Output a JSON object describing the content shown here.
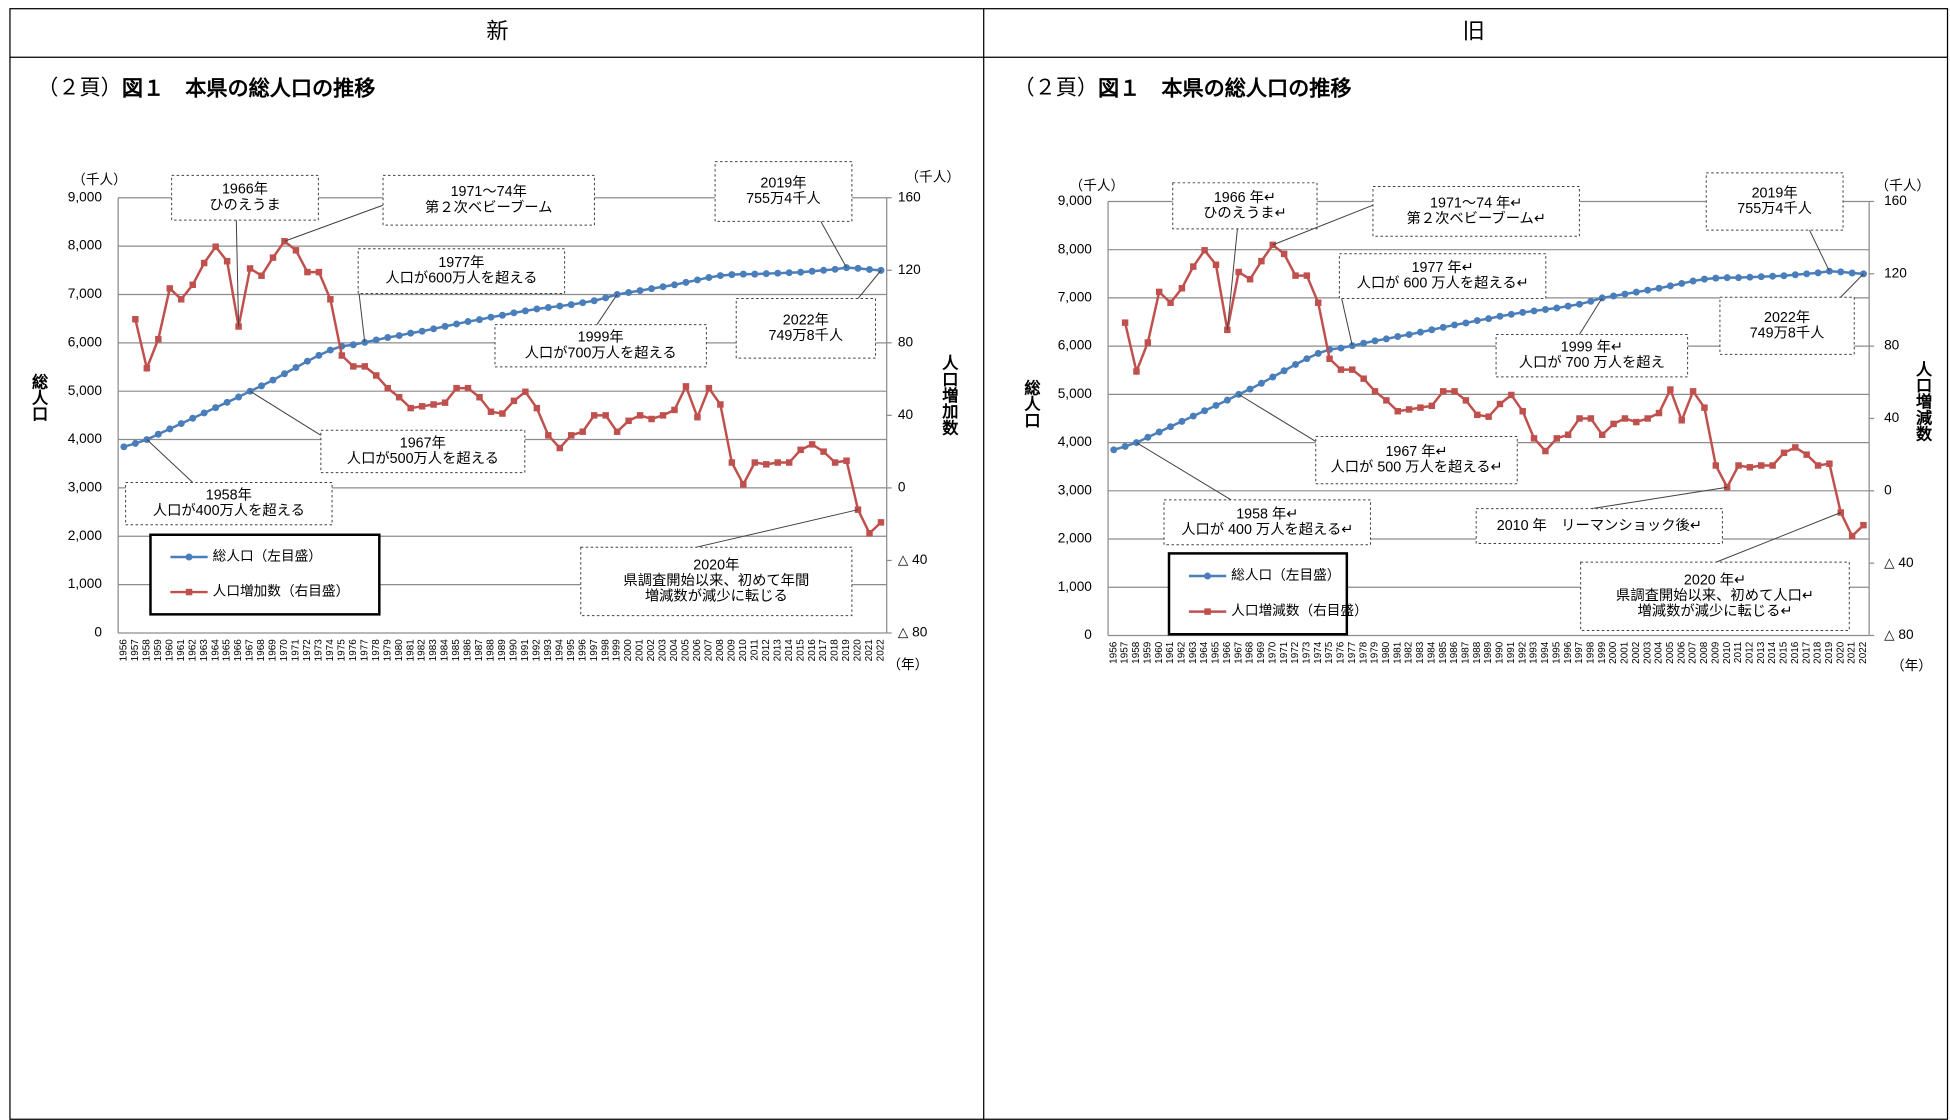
{
  "table": {
    "headers": [
      "新",
      "旧"
    ]
  },
  "captions": [
    {
      "page": "（２頁）",
      "title": "図１　本県の総人口の推移"
    },
    {
      "page": "（２頁）",
      "title": "図１　本県の総人口の推移"
    }
  ],
  "chart_data": [
    {
      "type": "line",
      "y_unit": "（千人）",
      "y2_unit": "（千人）",
      "y_label": "総人口",
      "y2_label": "人口増加数",
      "x_unit": "（年）",
      "categories": [
        "1956",
        "1957",
        "1958",
        "1959",
        "1960",
        "1961",
        "1962",
        "1963",
        "1964",
        "1965",
        "1966",
        "1967",
        "1968",
        "1969",
        "1970",
        "1971",
        "1972",
        "1973",
        "1974",
        "1975",
        "1976",
        "1977",
        "1978",
        "1979",
        "1980",
        "1981",
        "1982",
        "1983",
        "1984",
        "1985",
        "1986",
        "1987",
        "1988",
        "1989",
        "1990",
        "1991",
        "1992",
        "1993",
        "1994",
        "1995",
        "1996",
        "1997",
        "1998",
        "1999",
        "2000",
        "2001",
        "2002",
        "2003",
        "2004",
        "2005",
        "2006",
        "2007",
        "2008",
        "2009",
        "2010",
        "2011",
        "2012",
        "2013",
        "2014",
        "2015",
        "2016",
        "2017",
        "2018",
        "2019",
        "2020",
        "2021",
        "2022"
      ],
      "series": [
        {
          "name": "総人口（左目盛）",
          "color": "#4a7ebb",
          "values": [
            3850,
            3920,
            4000,
            4110,
            4220,
            4330,
            4440,
            4550,
            4660,
            4770,
            4880,
            5000,
            5110,
            5230,
            5360,
            5490,
            5620,
            5740,
            5850,
            5930,
            5960,
            6010,
            6060,
            6110,
            6150,
            6200,
            6240,
            6290,
            6340,
            6390,
            6440,
            6480,
            6530,
            6570,
            6620,
            6660,
            6700,
            6730,
            6760,
            6790,
            6830,
            6870,
            6930,
            7000,
            7040,
            7080,
            7120,
            7160,
            7200,
            7250,
            7300,
            7350,
            7390,
            7410,
            7420,
            7420,
            7430,
            7440,
            7450,
            7460,
            7480,
            7500,
            7520,
            7554,
            7540,
            7517,
            7498
          ]
        },
        {
          "name": "人口増加数（右目盛）",
          "color": "#c0504d",
          "axis": "y2",
          "values": [
            null,
            93,
            66,
            82,
            110,
            104,
            112,
            124,
            133,
            125,
            89,
            121,
            117,
            127,
            136,
            131,
            119,
            119,
            104,
            73,
            67,
            67,
            62,
            55,
            50,
            44,
            45,
            46,
            47,
            55,
            55,
            50,
            42,
            41,
            48,
            53,
            44,
            29,
            22,
            29,
            31,
            40,
            40,
            31,
            37,
            40,
            38,
            40,
            43,
            56,
            39,
            55,
            46,
            14,
            2,
            14,
            13,
            14,
            14,
            21,
            24,
            20,
            14,
            15,
            -12,
            -25,
            -19
          ]
        }
      ],
      "ylim": [
        0,
        9000
      ],
      "yticks": [
        0,
        {
          "value": 1000,
          "label": "1,000"
        },
        {
          "value": 2000,
          "label": "2,000"
        },
        {
          "value": 3000,
          "label": "3,000"
        },
        {
          "value": 4000,
          "label": "4,000"
        },
        {
          "value": 5000,
          "label": "5,000"
        },
        {
          "value": 6000,
          "label": "6,000"
        },
        {
          "value": 7000,
          "label": "7,000"
        },
        {
          "value": 8000,
          "label": "8,000"
        },
        {
          "value": 9000,
          "label": "9,000"
        }
      ],
      "y2lim": [
        -80,
        160
      ],
      "y2ticks": [
        {
          "value": -80,
          "label": "△ 80"
        },
        {
          "value": -40,
          "label": "△ 40"
        },
        0,
        40,
        80,
        120,
        160
      ],
      "grid": true,
      "annotations": [
        {
          "text": [
            "1966年",
            "ひのえうま"
          ]
        },
        {
          "text": [
            "1971～74年",
            "第２次ベビーブーム"
          ]
        },
        {
          "text": [
            "1977年",
            "人口が600万人を超える"
          ]
        },
        {
          "text": [
            "1999年",
            "人口が700万人を超える"
          ]
        },
        {
          "text": [
            "1967年",
            "人口が500万人を超える"
          ]
        },
        {
          "text": [
            "1958年",
            "人口が400万人を超える"
          ]
        },
        {
          "text": [
            "2019年",
            "755万4千人"
          ]
        },
        {
          "text": [
            "2022年",
            "749万8千人"
          ]
        },
        {
          "text": [
            "2020年",
            "県調査開始以来、初めて年間",
            "増減数が減少に転じる"
          ]
        }
      ]
    },
    {
      "type": "line",
      "y_unit": "（千人）",
      "y2_unit": "（千人）",
      "y_label": "総人口",
      "y2_label": "人口増減数",
      "x_unit": "（年）",
      "categories": [
        "1956",
        "1957",
        "1958",
        "1959",
        "1960",
        "1961",
        "1962",
        "1963",
        "1964",
        "1965",
        "1966",
        "1967",
        "1968",
        "1969",
        "1970",
        "1971",
        "1972",
        "1973",
        "1974",
        "1975",
        "1976",
        "1977",
        "1978",
        "1979",
        "1980",
        "1981",
        "1982",
        "1983",
        "1984",
        "1985",
        "1986",
        "1987",
        "1988",
        "1989",
        "1990",
        "1991",
        "1992",
        "1993",
        "1994",
        "1995",
        "1996",
        "1997",
        "1998",
        "1999",
        "2000",
        "2001",
        "2002",
        "2003",
        "2004",
        "2005",
        "2006",
        "2007",
        "2008",
        "2009",
        "2010",
        "2011",
        "2012",
        "2013",
        "2014",
        "2015",
        "2016",
        "2017",
        "2018",
        "2019",
        "2020",
        "2021",
        "2022"
      ],
      "series": [
        {
          "name": "総人口（左目盛）",
          "color": "#4a7ebb",
          "values": [
            3850,
            3920,
            4000,
            4110,
            4220,
            4330,
            4440,
            4550,
            4660,
            4770,
            4880,
            5000,
            5110,
            5230,
            5360,
            5490,
            5620,
            5740,
            5850,
            5930,
            5960,
            6010,
            6060,
            6110,
            6150,
            6200,
            6240,
            6290,
            6340,
            6390,
            6440,
            6480,
            6530,
            6570,
            6620,
            6660,
            6700,
            6730,
            6760,
            6790,
            6830,
            6870,
            6930,
            7000,
            7040,
            7080,
            7120,
            7160,
            7200,
            7250,
            7300,
            7350,
            7390,
            7410,
            7420,
            7420,
            7430,
            7440,
            7450,
            7460,
            7480,
            7500,
            7520,
            7554,
            7540,
            7517,
            7498
          ]
        },
        {
          "name": "人口増減数（右目盛）",
          "color": "#c0504d",
          "axis": "y2",
          "values": [
            null,
            93,
            66,
            82,
            110,
            104,
            112,
            124,
            133,
            125,
            89,
            121,
            117,
            127,
            136,
            131,
            119,
            119,
            104,
            73,
            67,
            67,
            62,
            55,
            50,
            44,
            45,
            46,
            47,
            55,
            55,
            50,
            42,
            41,
            48,
            53,
            44,
            29,
            22,
            29,
            31,
            40,
            40,
            31,
            37,
            40,
            38,
            40,
            43,
            56,
            39,
            55,
            46,
            14,
            2,
            14,
            13,
            14,
            14,
            21,
            24,
            20,
            14,
            15,
            -12,
            -25,
            -19
          ]
        }
      ],
      "ylim": [
        0,
        9000
      ],
      "yticks": [
        0,
        {
          "value": 1000,
          "label": "1,000"
        },
        {
          "value": 2000,
          "label": "2,000"
        },
        {
          "value": 3000,
          "label": "3,000"
        },
        {
          "value": 4000,
          "label": "4,000"
        },
        {
          "value": 5000,
          "label": "5,000"
        },
        {
          "value": 6000,
          "label": "6,000"
        },
        {
          "value": 7000,
          "label": "7,000"
        },
        {
          "value": 8000,
          "label": "8,000"
        },
        {
          "value": 9000,
          "label": "9,000"
        }
      ],
      "y2lim": [
        -80,
        160
      ],
      "y2ticks": [
        {
          "value": -80,
          "label": "△ 80"
        },
        {
          "value": -40,
          "label": "△ 40"
        },
        0,
        40,
        80,
        120,
        160
      ],
      "grid": true,
      "annotations": [
        {
          "text": [
            "1966 年↵",
            "ひのえうま↵"
          ]
        },
        {
          "text": [
            "1971～74 年↵",
            "第２次ベビーブーム↵"
          ]
        },
        {
          "text": [
            "1977 年↵",
            "人口が 600 万人を超える↵"
          ]
        },
        {
          "text": [
            "1999 年↵",
            "人口が 700 万人を超え"
          ]
        },
        {
          "text": [
            "1967 年↵",
            "人口が 500 万人を超える↵"
          ]
        },
        {
          "text": [
            "1958 年↵",
            "人口が 400 万人を超える↵"
          ]
        },
        {
          "text": [
            "2019年",
            "755万4千人"
          ]
        },
        {
          "text": [
            "2022年",
            "749万8千人"
          ]
        },
        {
          "text": [
            "2010 年　リーマンショック後↵"
          ]
        },
        {
          "text": [
            "2020 年↵",
            "県調査開始以来、初めて人口↵",
            "増減数が減少に転じる↵"
          ]
        }
      ]
    }
  ]
}
